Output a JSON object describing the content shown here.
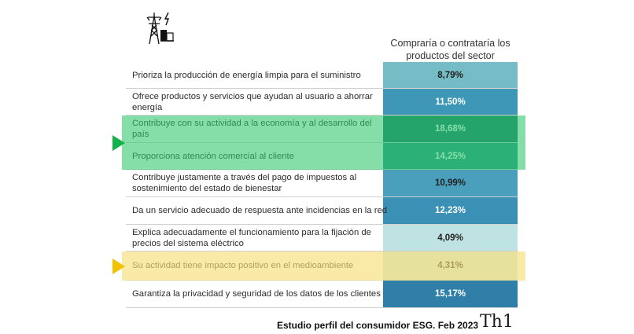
{
  "chart_data": {
    "type": "table",
    "column_header": "Compraría o contrataría los productos del sector",
    "rows": [
      {
        "label": "Prioriza la producción de energía limpia para el suministro",
        "value": "8,79%",
        "color": "#76bcc7",
        "text_color": "#222222"
      },
      {
        "label": "Ofrece productos y servicios que ayudan al usuario a ahorrar energía",
        "value": "11,50%",
        "color": "#3f97b8",
        "text_color": "#ffffff"
      },
      {
        "label": "Contribuye con su actividad a la economía y al desarrollo del país",
        "value": "18,68%",
        "color": "#0e6f66",
        "text_color": "#ffffff"
      },
      {
        "label": "Proporciona atención comercial al cliente",
        "value": "14,25%",
        "color": "#1e8c84",
        "text_color": "#ffffff"
      },
      {
        "label": "Contribuye justamente a través del pago de impuestos al sostenimiento del estado de bienestar",
        "value": "10,99%",
        "color": "#4aa0bc",
        "text_color": "#222222"
      },
      {
        "label": "Da un servicio adecuado de respuesta ante incidencias en la red",
        "value": "12,23%",
        "color": "#3a91b5",
        "text_color": "#ffffff"
      },
      {
        "label": "Explica adecuadamente el funcionamiento para la fijación de precios del sistema eléctrico",
        "value": "4,09%",
        "color": "#bfe3e3",
        "text_color": "#222222"
      },
      {
        "label": "Su actividad tiene impacto positivo en el medioambiente",
        "value": "4,31%",
        "color": "#c6e4e2",
        "text_color": "#222222"
      },
      {
        "label": "Garantiza la privacidad y seguridad de los datos de los clientes",
        "value": "15,17%",
        "color": "#2f7fa8",
        "text_color": "#ffffff"
      }
    ],
    "highlights": [
      {
        "rows": [
          2,
          3
        ],
        "color": "#34c86e"
      },
      {
        "rows": [
          7
        ],
        "color": "#f5d862"
      }
    ]
  },
  "footer": {
    "caption": "Estudio perfil del consumidor ESG. Feb 2023",
    "brand": "Th1"
  },
  "icons": {
    "logo": "power-tower-icon"
  }
}
